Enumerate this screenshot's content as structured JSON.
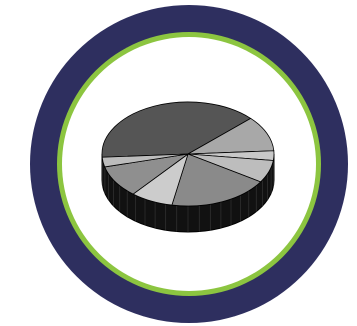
{
  "icon": "pie-chart-icon",
  "colors": {
    "outer_ring": "#2e2f5f",
    "accent_ring": "#8cc540",
    "inner_fill": "#ffffff",
    "pie_side": "#111111",
    "pie_outline": "#000000"
  },
  "pie_slices": [
    {
      "name": "large-dark-slice",
      "share": 0.39,
      "color": "#555555"
    },
    {
      "name": "slice-2",
      "share": 0.11,
      "color": "#a8a8a8"
    },
    {
      "name": "slice-3",
      "share": 0.03,
      "color": "#c8c8c8"
    },
    {
      "name": "slice-4",
      "share": 0.07,
      "color": "#bdbdbd"
    },
    {
      "name": "slice-5",
      "share": 0.19,
      "color": "#8a8a8a"
    },
    {
      "name": "slice-6",
      "share": 0.08,
      "color": "#cccccc"
    },
    {
      "name": "slice-7",
      "share": 0.1,
      "color": "#8f8f8f"
    },
    {
      "name": "slice-8",
      "share": 0.03,
      "color": "#bcbcbc"
    }
  ]
}
